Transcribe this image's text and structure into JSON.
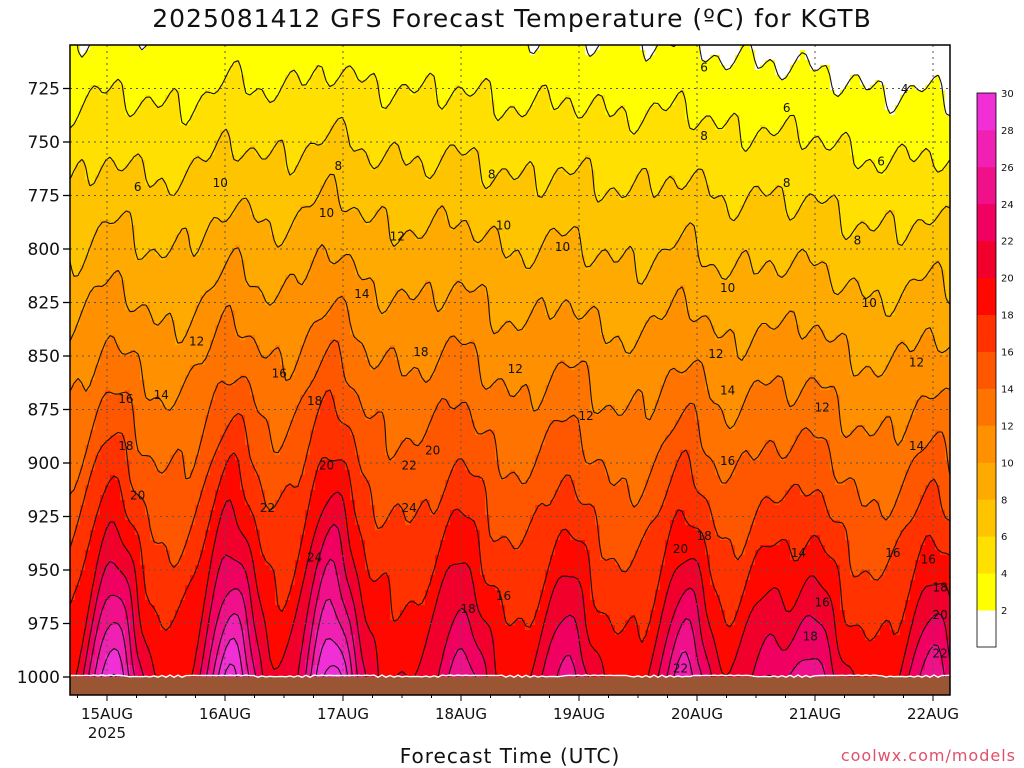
{
  "title": "2025081412 GFS Forecast Temperature (ºC) for KGTB",
  "credit": "coolwx.com/models",
  "chart_data": {
    "type": "heatmap",
    "title": "2025081412 GFS Forecast Temperature (ºC) for KGTB",
    "xlabel": "Forecast Time (UTC)",
    "ylabel": "",
    "x_axis": {
      "range": [
        0,
        7.5
      ],
      "unit": "days after 15AUG 00Z",
      "ticks": [
        {
          "v": 0,
          "label": "15AUG",
          "sub": "2025"
        },
        {
          "v": 1,
          "label": "16AUG"
        },
        {
          "v": 2,
          "label": "17AUG"
        },
        {
          "v": 3,
          "label": "18AUG"
        },
        {
          "v": 4,
          "label": "19AUG"
        },
        {
          "v": 5,
          "label": "20AUG"
        },
        {
          "v": 6,
          "label": "21AUG"
        },
        {
          "v": 7,
          "label": "22AUG"
        }
      ]
    },
    "y_axis": {
      "range": [
        1008,
        702
      ],
      "unit": "hPa",
      "inverted": true,
      "ticks": [
        1000,
        975,
        950,
        925,
        900,
        875,
        850,
        825,
        800,
        775,
        750,
        725
      ]
    },
    "grid": true,
    "colorbar": {
      "levels": [
        2,
        4,
        6,
        8,
        10,
        12,
        14,
        16,
        18,
        20,
        22,
        24,
        26,
        28,
        30
      ],
      "colors": [
        "#ffffff",
        "#ffff00",
        "#ffe000",
        "#ffc400",
        "#ffaa00",
        "#ff9000",
        "#ff7400",
        "#ff5600",
        "#ff3200",
        "#ff0800",
        "#f0002a",
        "#f00060",
        "#f0108a",
        "#f020b2",
        "#f030d6"
      ],
      "placement": "right"
    },
    "surface_color": "#9a5532",
    "contour_labels": [
      {
        "t": "6",
        "x": 0.26,
        "p": 773
      },
      {
        "t": "8",
        "x": 1.96,
        "p": 763
      },
      {
        "t": "8",
        "x": 3.26,
        "p": 767
      },
      {
        "t": "8",
        "x": 5.06,
        "p": 749
      },
      {
        "t": "8",
        "x": 5.76,
        "p": 771
      },
      {
        "t": "8",
        "x": 6.36,
        "p": 798
      },
      {
        "t": "6",
        "x": 5.06,
        "p": 717
      },
      {
        "t": "6",
        "x": 5.76,
        "p": 736
      },
      {
        "t": "6",
        "x": 6.56,
        "p": 761
      },
      {
        "t": "4",
        "x": 6.76,
        "p": 727
      },
      {
        "t": "10",
        "x": 0.96,
        "p": 771
      },
      {
        "t": "10",
        "x": 1.86,
        "p": 785
      },
      {
        "t": "10",
        "x": 3.36,
        "p": 791
      },
      {
        "t": "10",
        "x": 3.86,
        "p": 801
      },
      {
        "t": "10",
        "x": 5.26,
        "p": 820
      },
      {
        "t": "10",
        "x": 6.46,
        "p": 827
      },
      {
        "t": "12",
        "x": 2.46,
        "p": 796
      },
      {
        "t": "12",
        "x": 0.76,
        "p": 845
      },
      {
        "t": "12",
        "x": 3.46,
        "p": 858
      },
      {
        "t": "12",
        "x": 4.06,
        "p": 880
      },
      {
        "t": "12",
        "x": 5.16,
        "p": 851
      },
      {
        "t": "12",
        "x": 6.06,
        "p": 876
      },
      {
        "t": "12",
        "x": 6.86,
        "p": 855
      },
      {
        "t": "14",
        "x": 2.16,
        "p": 823
      },
      {
        "t": "14",
        "x": 0.46,
        "p": 870
      },
      {
        "t": "14",
        "x": 5.26,
        "p": 868
      },
      {
        "t": "14",
        "x": 6.86,
        "p": 894
      },
      {
        "t": "14",
        "x": 5.86,
        "p": 944
      },
      {
        "t": "16",
        "x": 0.16,
        "p": 872
      },
      {
        "t": "16",
        "x": 1.46,
        "p": 860
      },
      {
        "t": "16",
        "x": 5.26,
        "p": 901
      },
      {
        "t": "16",
        "x": 3.36,
        "p": 964
      },
      {
        "t": "16",
        "x": 6.96,
        "p": 947
      },
      {
        "t": "16",
        "x": 6.66,
        "p": 944
      },
      {
        "t": "16",
        "x": 6.06,
        "p": 967
      },
      {
        "t": "18",
        "x": 0.16,
        "p": 894
      },
      {
        "t": "18",
        "x": 1.76,
        "p": 873
      },
      {
        "t": "18",
        "x": 2.66,
        "p": 850
      },
      {
        "t": "18",
        "x": 3.06,
        "p": 970
      },
      {
        "t": "18",
        "x": 5.06,
        "p": 936
      },
      {
        "t": "18",
        "x": 7.06,
        "p": 960
      },
      {
        "t": "18",
        "x": 5.96,
        "p": 983
      },
      {
        "t": "20",
        "x": 0.26,
        "p": 917
      },
      {
        "t": "20",
        "x": 1.86,
        "p": 903
      },
      {
        "t": "20",
        "x": 2.76,
        "p": 896
      },
      {
        "t": "20",
        "x": 4.86,
        "p": 942
      },
      {
        "t": "20",
        "x": 7.06,
        "p": 973
      },
      {
        "t": "22",
        "x": 2.56,
        "p": 903
      },
      {
        "t": "22",
        "x": 1.36,
        "p": 923
      },
      {
        "t": "22",
        "x": 4.86,
        "p": 998
      },
      {
        "t": "22",
        "x": 7.06,
        "p": 991
      },
      {
        "t": "24",
        "x": 2.56,
        "p": 923
      },
      {
        "t": "24",
        "x": 1.76,
        "p": 946
      }
    ]
  }
}
